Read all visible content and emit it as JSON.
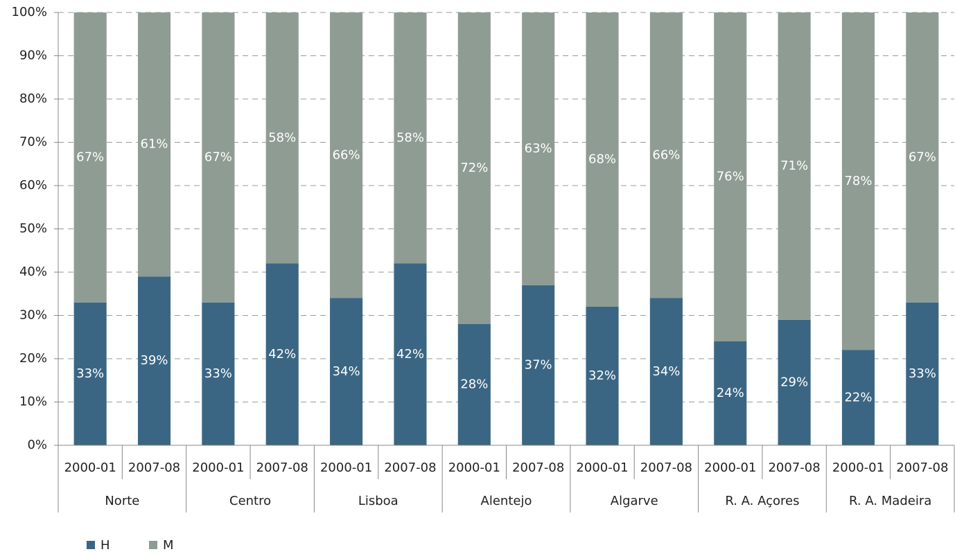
{
  "chart_data": {
    "type": "stacked_bar",
    "categories": [
      "2000-01",
      "2007-08",
      "2000-01",
      "2007-08",
      "2000-01",
      "2007-08",
      "2000-01",
      "2007-08",
      "2000-01",
      "2007-08",
      "2000-01",
      "2007-08",
      "2000-01",
      "2007-08"
    ],
    "groups": [
      "Norte",
      "Centro",
      "Lisboa",
      "Alentejo",
      "Algarve",
      "R. A. Açores",
      "R. A. Madeira"
    ],
    "series": [
      {
        "name": "H",
        "color": "#3b6683",
        "values": [
          33,
          39,
          33,
          42,
          34,
          42,
          28,
          37,
          32,
          34,
          24,
          29,
          22,
          33
        ],
        "value_labels": [
          "33%",
          "39%",
          "33%",
          "42%",
          "34%",
          "42%",
          "28%",
          "37%",
          "32%",
          "34%",
          "24%",
          "29%",
          "22%",
          "33%"
        ]
      },
      {
        "name": "M",
        "color": "#8f9c94",
        "values": [
          67,
          61,
          67,
          58,
          66,
          58,
          72,
          63,
          68,
          66,
          76,
          71,
          78,
          67
        ],
        "value_labels": [
          "67%",
          "61%",
          "67%",
          "58%",
          "66%",
          "58%",
          "72%",
          "63%",
          "68%",
          "66%",
          "76%",
          "71%",
          "78%",
          "67%"
        ]
      }
    ],
    "ylim": [
      0,
      100
    ],
    "yticks": [
      {
        "value": 0,
        "label": "0%"
      },
      {
        "value": 10,
        "label": "10%"
      },
      {
        "value": 20,
        "label": "20%"
      },
      {
        "value": 30,
        "label": "30%"
      },
      {
        "value": 40,
        "label": "40%"
      },
      {
        "value": 50,
        "label": "50%"
      },
      {
        "value": 60,
        "label": "60%"
      },
      {
        "value": 70,
        "label": "70%"
      },
      {
        "value": 80,
        "label": "80%"
      },
      {
        "value": 90,
        "label": "90%"
      },
      {
        "value": 100,
        "label": "100%"
      }
    ],
    "grid": true
  }
}
